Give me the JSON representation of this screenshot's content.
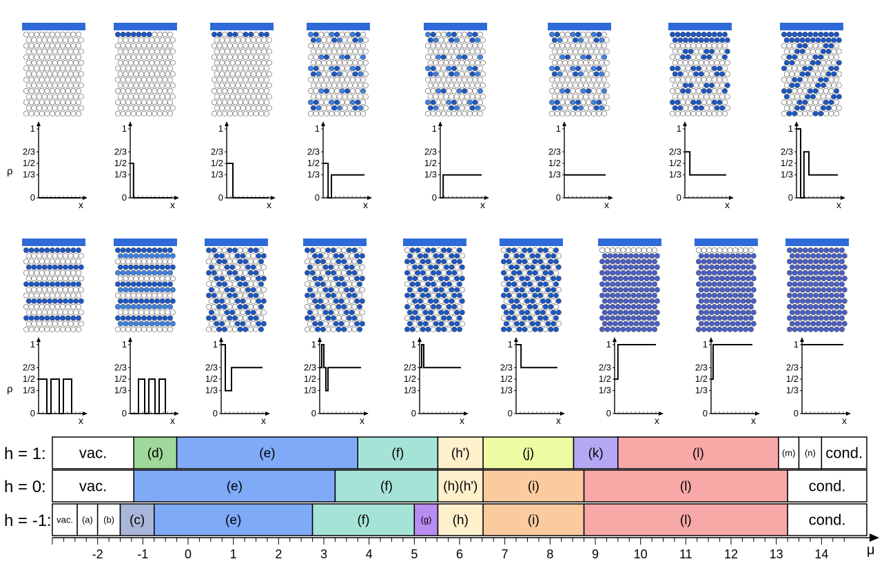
{
  "rho_label": "ρ",
  "x_label": "x",
  "y_ticks": [
    "0",
    "1/3",
    "1/2",
    "2/3",
    "1"
  ],
  "colors": {
    "adsorbate_dark": "#1a57c8",
    "adsorbate_light": "#3b82e6",
    "empty": "#ffffff",
    "cond": "#4a5fc8",
    "electrode": "#2f6bd8"
  },
  "panels": [
    {
      "label": "vac.",
      "pattern": "empty",
      "profile": [
        [
          0,
          0
        ],
        [
          1,
          0
        ]
      ]
    },
    {
      "label": "(a)",
      "pattern": "top1",
      "profile": [
        [
          0,
          0.5
        ],
        [
          0.08,
          0.5
        ],
        [
          0.08,
          0
        ],
        [
          1,
          0
        ]
      ]
    },
    {
      "label": "(b)",
      "pattern": "top1b",
      "profile": [
        [
          0,
          0.5
        ],
        [
          0.15,
          0.5
        ],
        [
          0.15,
          0
        ],
        [
          1,
          0
        ]
      ]
    },
    {
      "label": "(c)",
      "pattern": "clusters",
      "profile": [
        [
          0,
          0.5
        ],
        [
          0.12,
          0.5
        ],
        [
          0.12,
          0
        ],
        [
          0.2,
          0
        ],
        [
          0.2,
          0.333
        ],
        [
          1,
          0.333
        ]
      ]
    },
    {
      "label": "(d)",
      "pattern": "clusters",
      "profile": [
        [
          0,
          0
        ],
        [
          0.07,
          0
        ],
        [
          0.07,
          0.333
        ],
        [
          1,
          0.333
        ]
      ]
    },
    {
      "label": "(e)",
      "pattern": "clusters",
      "profile": [
        [
          0,
          0.333
        ],
        [
          1,
          0.333
        ]
      ]
    },
    {
      "label": "(f)",
      "pattern": "clusters_top",
      "profile": [
        [
          0,
          0.667
        ],
        [
          0.12,
          0.667
        ],
        [
          0.12,
          0.333
        ],
        [
          1,
          0.333
        ]
      ]
    },
    {
      "label": "(g)",
      "pattern": "diag",
      "profile": [
        [
          0,
          1
        ],
        [
          0.1,
          1
        ],
        [
          0.1,
          0
        ],
        [
          0.18,
          0
        ],
        [
          0.18,
          0.667
        ],
        [
          0.3,
          0.667
        ],
        [
          0.3,
          0.333
        ],
        [
          1,
          0.333
        ]
      ]
    },
    {
      "label": "(h)",
      "pattern": "rows",
      "profile": [
        [
          0,
          0.5
        ],
        [
          0.2,
          0.5
        ],
        [
          0.2,
          0
        ],
        [
          0.3,
          0
        ],
        [
          0.3,
          0.5
        ],
        [
          0.5,
          0.5
        ],
        [
          0.5,
          0
        ],
        [
          0.6,
          0
        ],
        [
          0.6,
          0.5
        ],
        [
          0.8,
          0.5
        ],
        [
          0.8,
          0
        ]
      ]
    },
    {
      "label": "(h')",
      "pattern": "rows2",
      "profile": [
        [
          0,
          0
        ],
        [
          0.2,
          0
        ],
        [
          0.2,
          0.5
        ],
        [
          0.35,
          0.5
        ],
        [
          0.35,
          0
        ],
        [
          0.45,
          0
        ],
        [
          0.45,
          0.5
        ],
        [
          0.6,
          0.5
        ],
        [
          0.6,
          0
        ],
        [
          0.7,
          0
        ],
        [
          0.7,
          0.5
        ],
        [
          0.85,
          0.5
        ],
        [
          0.85,
          0
        ]
      ]
    },
    {
      "label": "(i)",
      "pattern": "diag_dense",
      "profile": [
        [
          0,
          1
        ],
        [
          0.1,
          1
        ],
        [
          0.1,
          0.333
        ],
        [
          0.25,
          0.333
        ],
        [
          0.25,
          0.667
        ],
        [
          1,
          0.667
        ]
      ]
    },
    {
      "label": "(j)",
      "pattern": "diag_dense",
      "profile": [
        [
          0,
          0.667
        ],
        [
          0.05,
          0.667
        ],
        [
          0.05,
          1
        ],
        [
          0.1,
          1
        ],
        [
          0.1,
          0.667
        ],
        [
          0.15,
          0.667
        ],
        [
          0.15,
          0.333
        ],
        [
          0.2,
          0.333
        ],
        [
          0.2,
          0.667
        ],
        [
          1,
          0.667
        ]
      ]
    },
    {
      "label": "(k)",
      "pattern": "honey",
      "profile": [
        [
          0,
          0.667
        ],
        [
          0.05,
          0.667
        ],
        [
          0.05,
          1
        ],
        [
          0.1,
          1
        ],
        [
          0.1,
          0.667
        ],
        [
          1,
          0.667
        ]
      ]
    },
    {
      "label": "(l)",
      "pattern": "honey",
      "profile": [
        [
          0,
          1
        ],
        [
          0.12,
          1
        ],
        [
          0.12,
          0.667
        ],
        [
          1,
          0.667
        ]
      ]
    },
    {
      "label": "(m)",
      "pattern": "full_top",
      "profile": [
        [
          0,
          0.5
        ],
        [
          0.08,
          0.5
        ],
        [
          0.08,
          1
        ],
        [
          1,
          1
        ]
      ]
    },
    {
      "label": "(n)",
      "pattern": "full_top",
      "profile": [
        [
          0,
          0.5
        ],
        [
          0.05,
          0.5
        ],
        [
          0.05,
          1
        ],
        [
          1,
          1
        ]
      ]
    },
    {
      "label": "cond.",
      "pattern": "full",
      "profile": [
        [
          0,
          1
        ],
        [
          1,
          1
        ]
      ]
    }
  ],
  "chart_data": {
    "type": "phase-diagram",
    "xlabel": "μ",
    "x_ticks": [
      -2,
      -1,
      0,
      1,
      2,
      3,
      4,
      5,
      6,
      7,
      8,
      9,
      10,
      11,
      12,
      13,
      14
    ],
    "xlim": [
      -3.0,
      15.0
    ],
    "rows": [
      {
        "label": "h = 1:",
        "segments": [
          {
            "label": "vac.",
            "from": -3.0,
            "to": -1.2,
            "color": "#ffffff"
          },
          {
            "label": "(d)",
            "from": -1.2,
            "to": -0.25,
            "color": "#9fd89a"
          },
          {
            "label": "(e)",
            "from": -0.25,
            "to": 3.75,
            "color": "#7faaf7"
          },
          {
            "label": "(f)",
            "from": 3.75,
            "to": 5.52,
            "color": "#a6e3d7"
          },
          {
            "label": "(h')",
            "from": 5.52,
            "to": 6.52,
            "color": "#fff0cc"
          },
          {
            "label": "(j)",
            "from": 6.52,
            "to": 8.52,
            "color": "#eefca3"
          },
          {
            "label": "(k)",
            "from": 8.52,
            "to": 9.5,
            "color": "#b4a8f5"
          },
          {
            "label": "(l)",
            "from": 9.5,
            "to": 13.05,
            "color": "#f9a8a8"
          },
          {
            "label": "(m)",
            "from": 13.05,
            "to": 13.5,
            "color": "#ffffff"
          },
          {
            "label": "(n)",
            "from": 13.5,
            "to": 14.0,
            "color": "#ffffff"
          },
          {
            "label": "cond.",
            "from": 14.0,
            "to": 15.0,
            "color": "#ffffff"
          }
        ]
      },
      {
        "label": "h = 0:",
        "segments": [
          {
            "label": "vac.",
            "from": -3.0,
            "to": -1.2,
            "color": "#ffffff"
          },
          {
            "label": "(e)",
            "from": -1.2,
            "to": 3.25,
            "color": "#7faaf7"
          },
          {
            "label": "(f)",
            "from": 3.25,
            "to": 5.52,
            "color": "#a6e3d7"
          },
          {
            "label": "(h)(h')",
            "from": 5.52,
            "to": 6.52,
            "color": "#fff0cc"
          },
          {
            "label": "(i)",
            "from": 6.52,
            "to": 8.75,
            "color": "#fbcba0"
          },
          {
            "label": "(l)",
            "from": 8.75,
            "to": 13.25,
            "color": "#f9a8a8"
          },
          {
            "label": "cond.",
            "from": 13.25,
            "to": 15.0,
            "color": "#ffffff"
          }
        ]
      },
      {
        "label": "h = -1:",
        "segments": [
          {
            "label": "vac.",
            "from": -3.0,
            "to": -2.45,
            "color": "#ffffff"
          },
          {
            "label": "(a)",
            "from": -2.45,
            "to": -2.0,
            "color": "#ffffff"
          },
          {
            "label": "(b)",
            "from": -2.0,
            "to": -1.5,
            "color": "#ffffff"
          },
          {
            "label": "(c)",
            "from": -1.5,
            "to": -0.75,
            "color": "#a9b6d9"
          },
          {
            "label": "(e)",
            "from": -0.75,
            "to": 2.75,
            "color": "#7faaf7"
          },
          {
            "label": "(f)",
            "from": 2.75,
            "to": 5.0,
            "color": "#a6e3d7"
          },
          {
            "label": "(g)",
            "from": 5.0,
            "to": 5.52,
            "color": "#b98cf0"
          },
          {
            "label": "(h)",
            "from": 5.52,
            "to": 6.52,
            "color": "#fff0cc"
          },
          {
            "label": "(i)",
            "from": 6.52,
            "to": 8.75,
            "color": "#fbcba0"
          },
          {
            "label": "(l)",
            "from": 8.75,
            "to": 13.25,
            "color": "#f9a8a8"
          },
          {
            "label": "cond.",
            "from": 13.25,
            "to": 15.0,
            "color": "#ffffff"
          }
        ]
      }
    ]
  }
}
